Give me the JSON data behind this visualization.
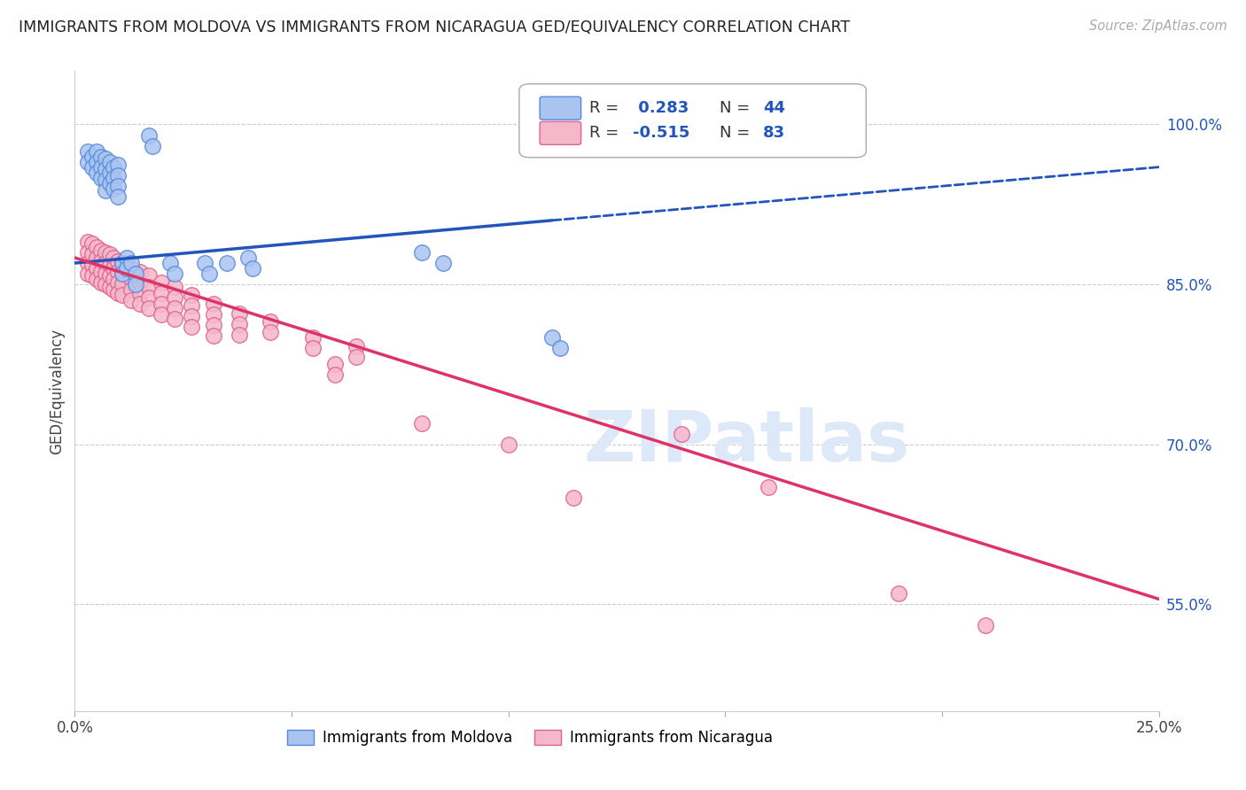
{
  "title": "IMMIGRANTS FROM MOLDOVA VS IMMIGRANTS FROM NICARAGUA GED/EQUIVALENCY CORRELATION CHART",
  "source_text": "Source: ZipAtlas.com",
  "ylabel": "GED/Equivalency",
  "legend_label_blue": "Immigrants from Moldova",
  "legend_label_pink": "Immigrants from Nicaragua",
  "watermark": "ZIPatlas",
  "blue_color": "#aac4f0",
  "pink_color": "#f5b8cb",
  "blue_edge_color": "#5588dd",
  "pink_edge_color": "#e06090",
  "blue_line_color": "#2255bb",
  "pink_line_color": "#dd3366",
  "scatter_blue": [
    [
      0.003,
      0.975
    ],
    [
      0.003,
      0.965
    ],
    [
      0.004,
      0.97
    ],
    [
      0.004,
      0.96
    ],
    [
      0.005,
      0.975
    ],
    [
      0.005,
      0.965
    ],
    [
      0.005,
      0.955
    ],
    [
      0.006,
      0.97
    ],
    [
      0.006,
      0.96
    ],
    [
      0.006,
      0.95
    ],
    [
      0.007,
      0.968
    ],
    [
      0.007,
      0.958
    ],
    [
      0.007,
      0.948
    ],
    [
      0.007,
      0.938
    ],
    [
      0.008,
      0.965
    ],
    [
      0.008,
      0.955
    ],
    [
      0.008,
      0.945
    ],
    [
      0.009,
      0.96
    ],
    [
      0.009,
      0.95
    ],
    [
      0.009,
      0.94
    ],
    [
      0.01,
      0.962
    ],
    [
      0.01,
      0.952
    ],
    [
      0.01,
      0.942
    ],
    [
      0.01,
      0.932
    ],
    [
      0.011,
      0.87
    ],
    [
      0.011,
      0.86
    ],
    [
      0.012,
      0.875
    ],
    [
      0.012,
      0.865
    ],
    [
      0.013,
      0.87
    ],
    [
      0.014,
      0.86
    ],
    [
      0.014,
      0.85
    ],
    [
      0.017,
      0.99
    ],
    [
      0.018,
      0.98
    ],
    [
      0.022,
      0.87
    ],
    [
      0.023,
      0.86
    ],
    [
      0.03,
      0.87
    ],
    [
      0.031,
      0.86
    ],
    [
      0.04,
      0.875
    ],
    [
      0.041,
      0.865
    ],
    [
      0.08,
      0.88
    ],
    [
      0.085,
      0.87
    ],
    [
      0.11,
      0.8
    ],
    [
      0.112,
      0.79
    ],
    [
      0.035,
      0.87
    ]
  ],
  "scatter_pink": [
    [
      0.003,
      0.89
    ],
    [
      0.003,
      0.88
    ],
    [
      0.003,
      0.87
    ],
    [
      0.003,
      0.86
    ],
    [
      0.004,
      0.888
    ],
    [
      0.004,
      0.878
    ],
    [
      0.004,
      0.868
    ],
    [
      0.004,
      0.858
    ],
    [
      0.005,
      0.885
    ],
    [
      0.005,
      0.875
    ],
    [
      0.005,
      0.865
    ],
    [
      0.005,
      0.855
    ],
    [
      0.006,
      0.882
    ],
    [
      0.006,
      0.872
    ],
    [
      0.006,
      0.862
    ],
    [
      0.006,
      0.852
    ],
    [
      0.007,
      0.88
    ],
    [
      0.007,
      0.87
    ],
    [
      0.007,
      0.86
    ],
    [
      0.007,
      0.85
    ],
    [
      0.008,
      0.878
    ],
    [
      0.008,
      0.868
    ],
    [
      0.008,
      0.858
    ],
    [
      0.008,
      0.848
    ],
    [
      0.009,
      0.875
    ],
    [
      0.009,
      0.865
    ],
    [
      0.009,
      0.855
    ],
    [
      0.009,
      0.845
    ],
    [
      0.01,
      0.872
    ],
    [
      0.01,
      0.862
    ],
    [
      0.01,
      0.852
    ],
    [
      0.01,
      0.842
    ],
    [
      0.011,
      0.87
    ],
    [
      0.011,
      0.86
    ],
    [
      0.011,
      0.85
    ],
    [
      0.011,
      0.84
    ],
    [
      0.013,
      0.865
    ],
    [
      0.013,
      0.855
    ],
    [
      0.013,
      0.845
    ],
    [
      0.013,
      0.835
    ],
    [
      0.015,
      0.862
    ],
    [
      0.015,
      0.852
    ],
    [
      0.015,
      0.842
    ],
    [
      0.015,
      0.832
    ],
    [
      0.017,
      0.858
    ],
    [
      0.017,
      0.848
    ],
    [
      0.017,
      0.838
    ],
    [
      0.017,
      0.828
    ],
    [
      0.02,
      0.852
    ],
    [
      0.02,
      0.842
    ],
    [
      0.02,
      0.832
    ],
    [
      0.02,
      0.822
    ],
    [
      0.023,
      0.848
    ],
    [
      0.023,
      0.838
    ],
    [
      0.023,
      0.828
    ],
    [
      0.023,
      0.818
    ],
    [
      0.027,
      0.84
    ],
    [
      0.027,
      0.83
    ],
    [
      0.027,
      0.82
    ],
    [
      0.027,
      0.81
    ],
    [
      0.032,
      0.832
    ],
    [
      0.032,
      0.822
    ],
    [
      0.032,
      0.812
    ],
    [
      0.032,
      0.802
    ],
    [
      0.038,
      0.823
    ],
    [
      0.038,
      0.813
    ],
    [
      0.038,
      0.803
    ],
    [
      0.045,
      0.815
    ],
    [
      0.045,
      0.805
    ],
    [
      0.055,
      0.8
    ],
    [
      0.055,
      0.79
    ],
    [
      0.065,
      0.792
    ],
    [
      0.065,
      0.782
    ],
    [
      0.08,
      0.72
    ],
    [
      0.1,
      0.7
    ],
    [
      0.115,
      0.65
    ],
    [
      0.14,
      0.71
    ],
    [
      0.16,
      0.66
    ],
    [
      0.19,
      0.56
    ],
    [
      0.21,
      0.53
    ],
    [
      0.06,
      0.775
    ],
    [
      0.06,
      0.765
    ]
  ],
  "blue_line_solid": {
    "x0": 0.0,
    "x1": 0.11,
    "y0": 0.87,
    "y1": 0.91
  },
  "blue_line_dashed": {
    "x0": 0.11,
    "x1": 0.25,
    "y0": 0.91,
    "y1": 0.96
  },
  "pink_line": {
    "x0": 0.0,
    "x1": 0.25,
    "y0": 0.875,
    "y1": 0.555
  },
  "xmin": 0.0,
  "xmax": 0.25,
  "ymin": 0.45,
  "ymax": 1.05,
  "ytick_vals": [
    0.55,
    0.7,
    0.85,
    1.0
  ],
  "ytick_labels": [
    "55.0%",
    "70.0%",
    "85.0%",
    "100.0%"
  ],
  "xtick_positions": [
    0.0,
    0.05,
    0.1,
    0.15,
    0.2,
    0.25
  ],
  "xtick_labels": [
    "0.0%",
    "",
    "",
    "",
    "",
    "25.0%"
  ]
}
